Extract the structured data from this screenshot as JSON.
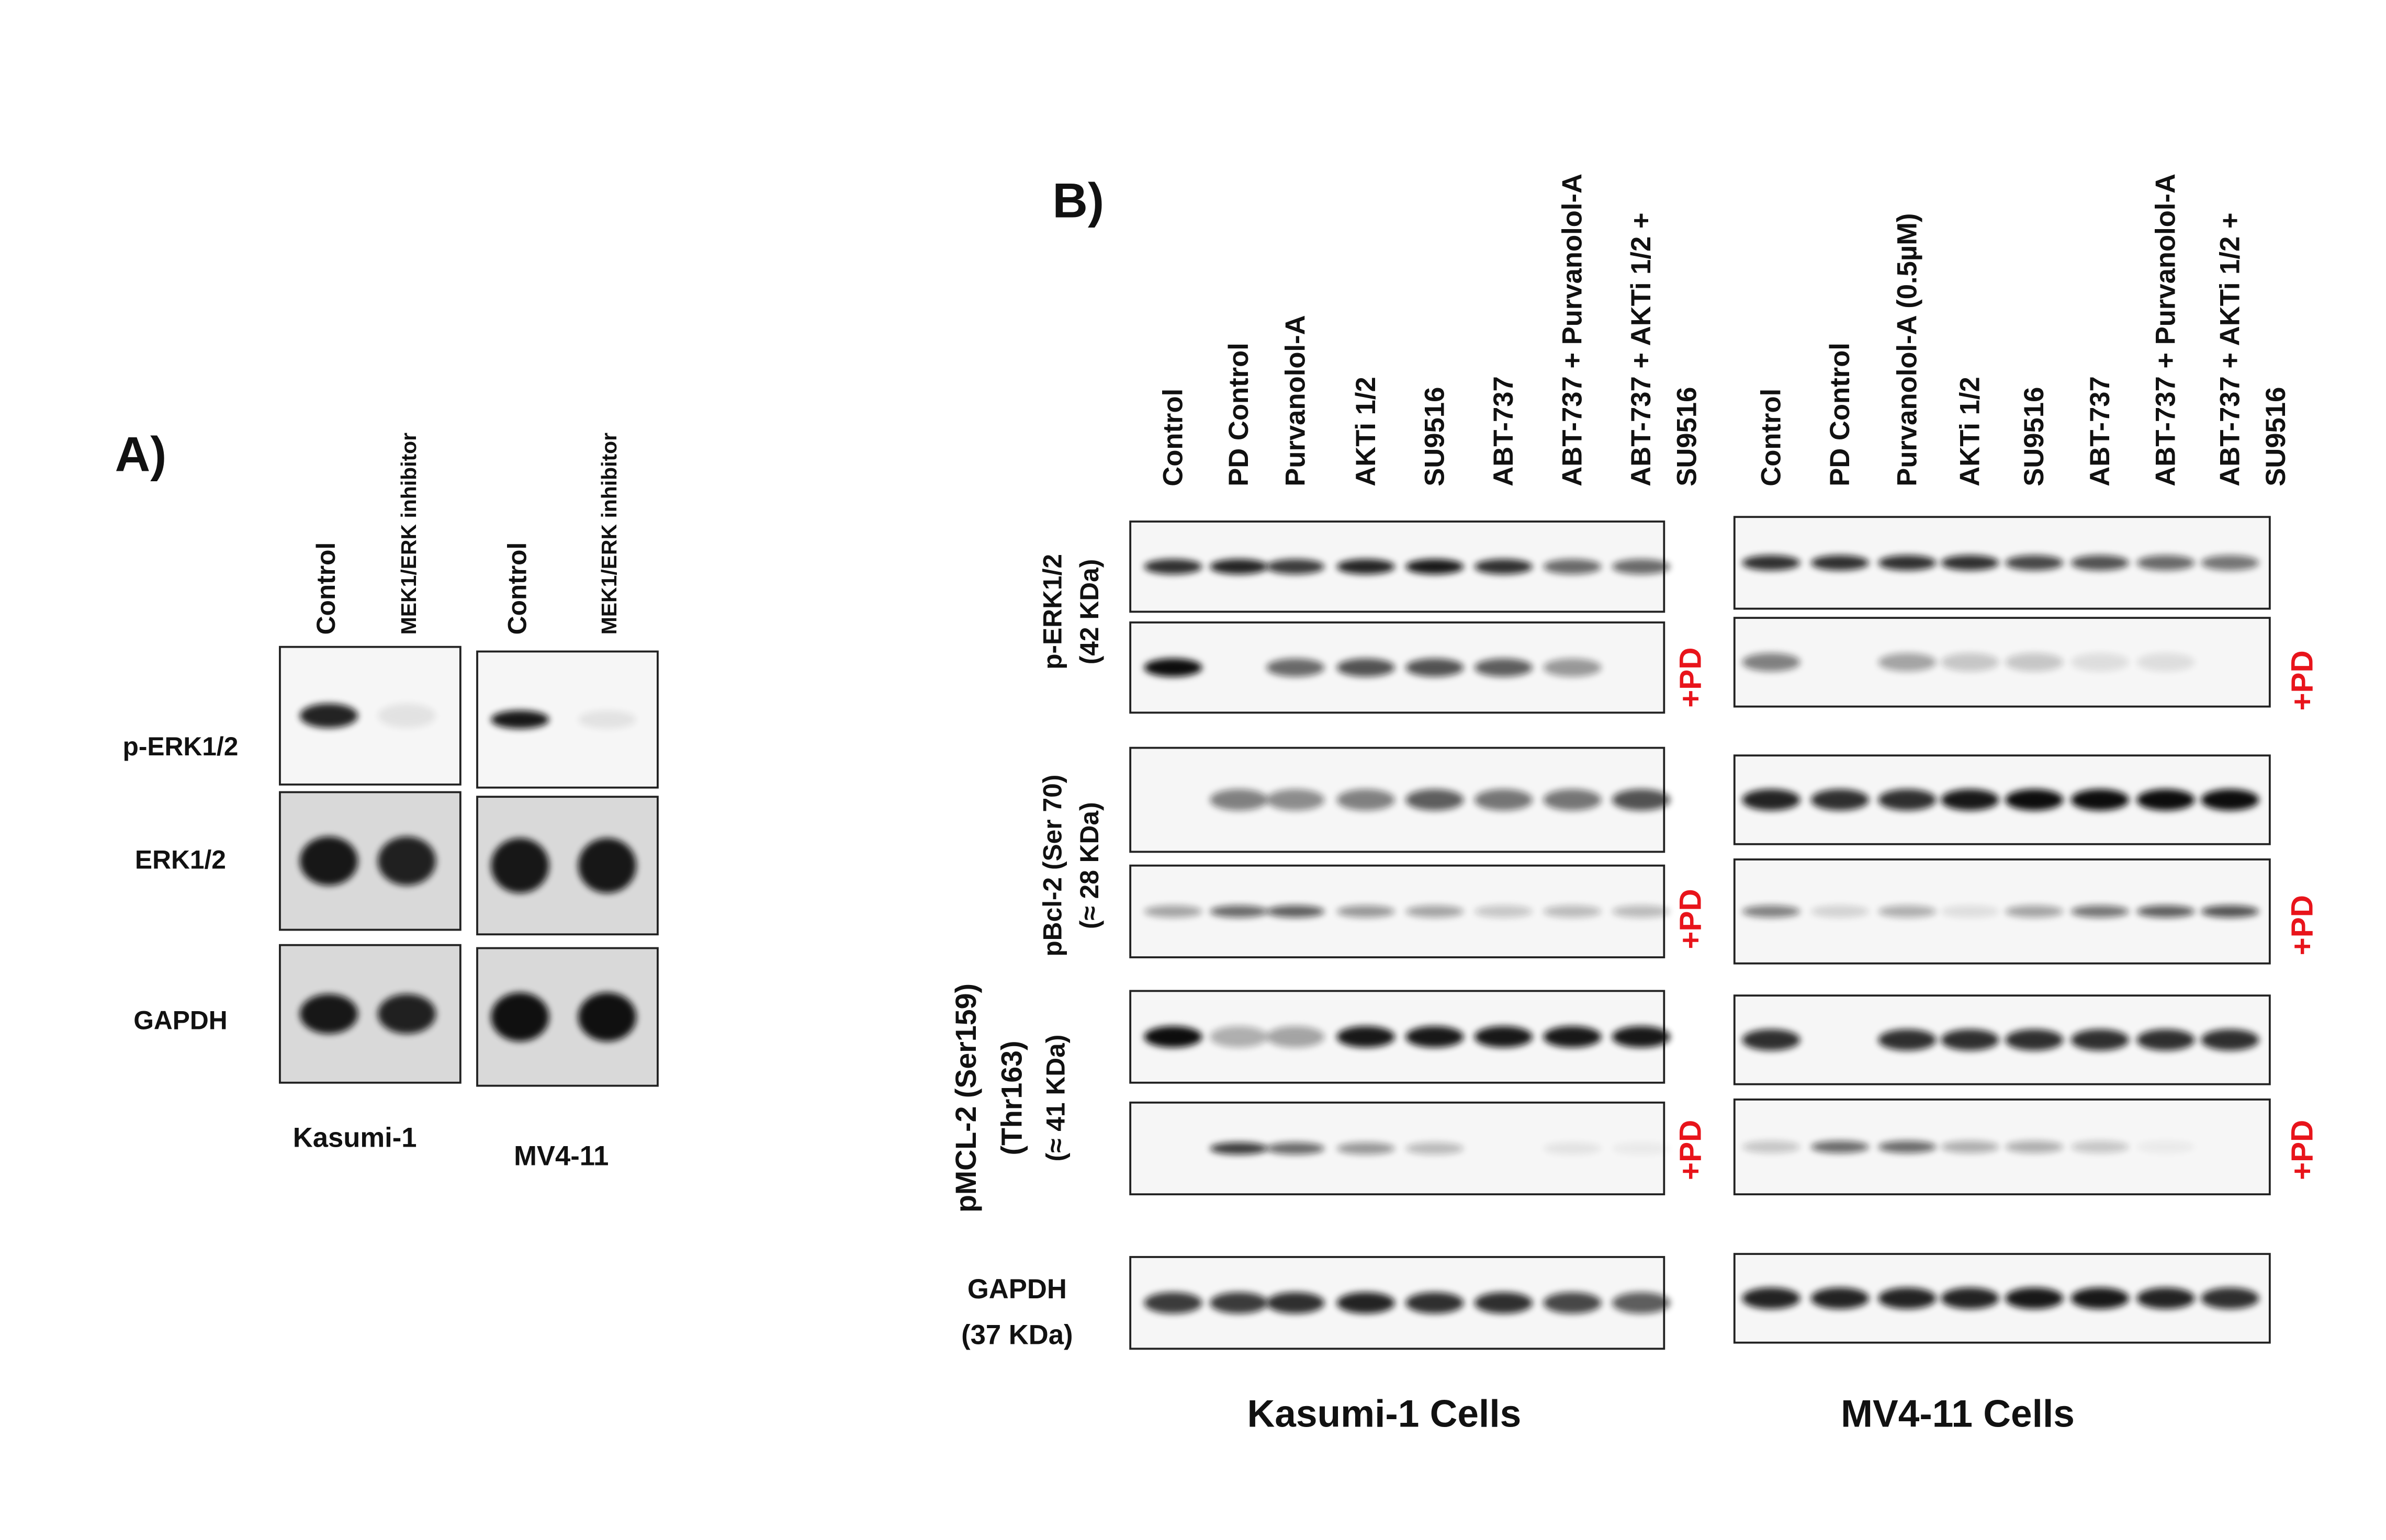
{
  "panel_a": {
    "label": "A)",
    "lanes": [
      "Control",
      "MEK1/ERK inhibitor"
    ],
    "rows": [
      "p-ERK1/2",
      "ERK1/2",
      "GAPDH"
    ],
    "cell_lines": [
      "Kasumi-1",
      "MV4-11"
    ]
  },
  "panel_b": {
    "label": "B)",
    "kasumi_lanes": [
      [
        "Control"
      ],
      [
        "PD Control"
      ],
      [
        "Purvanolol-A"
      ],
      [
        "AKTi 1/2"
      ],
      [
        "SU9516"
      ],
      [
        "ABT-737"
      ],
      [
        "ABT-737 + Purvanolol-A"
      ],
      [
        "ABT-737 + AKTi 1/2 +",
        "SU9516"
      ]
    ],
    "mv411_lanes": [
      [
        "Control"
      ],
      [
        "PD Control"
      ],
      [
        "Purvanolol-A  (0.5µM)"
      ],
      [
        "AKTi 1/2"
      ],
      [
        "SU9516"
      ],
      [
        "ABT-737"
      ],
      [
        "ABT-737 + Purvanolol-A"
      ],
      [
        "ABT-737 + AKTi 1/2 +",
        "SU9516"
      ]
    ],
    "rows": [
      [
        "p-ERK1/2",
        "(42 KDa)"
      ],
      [
        "pBcl-2 (Ser 70)",
        "(≈ 28 KDa)"
      ],
      [
        "pMCL-2 (Ser159)",
        "(Thr163)",
        "(≈ 41 KDa)"
      ],
      [
        "GAPDH",
        "(37 KDa)"
      ]
    ],
    "pd_labels": [
      "+PD",
      "+PD",
      "+PD",
      "+PD",
      "+PD",
      "+PD"
    ],
    "footers": [
      "Kasumi-1 Cells",
      "MV4-11 Cells"
    ]
  }
}
